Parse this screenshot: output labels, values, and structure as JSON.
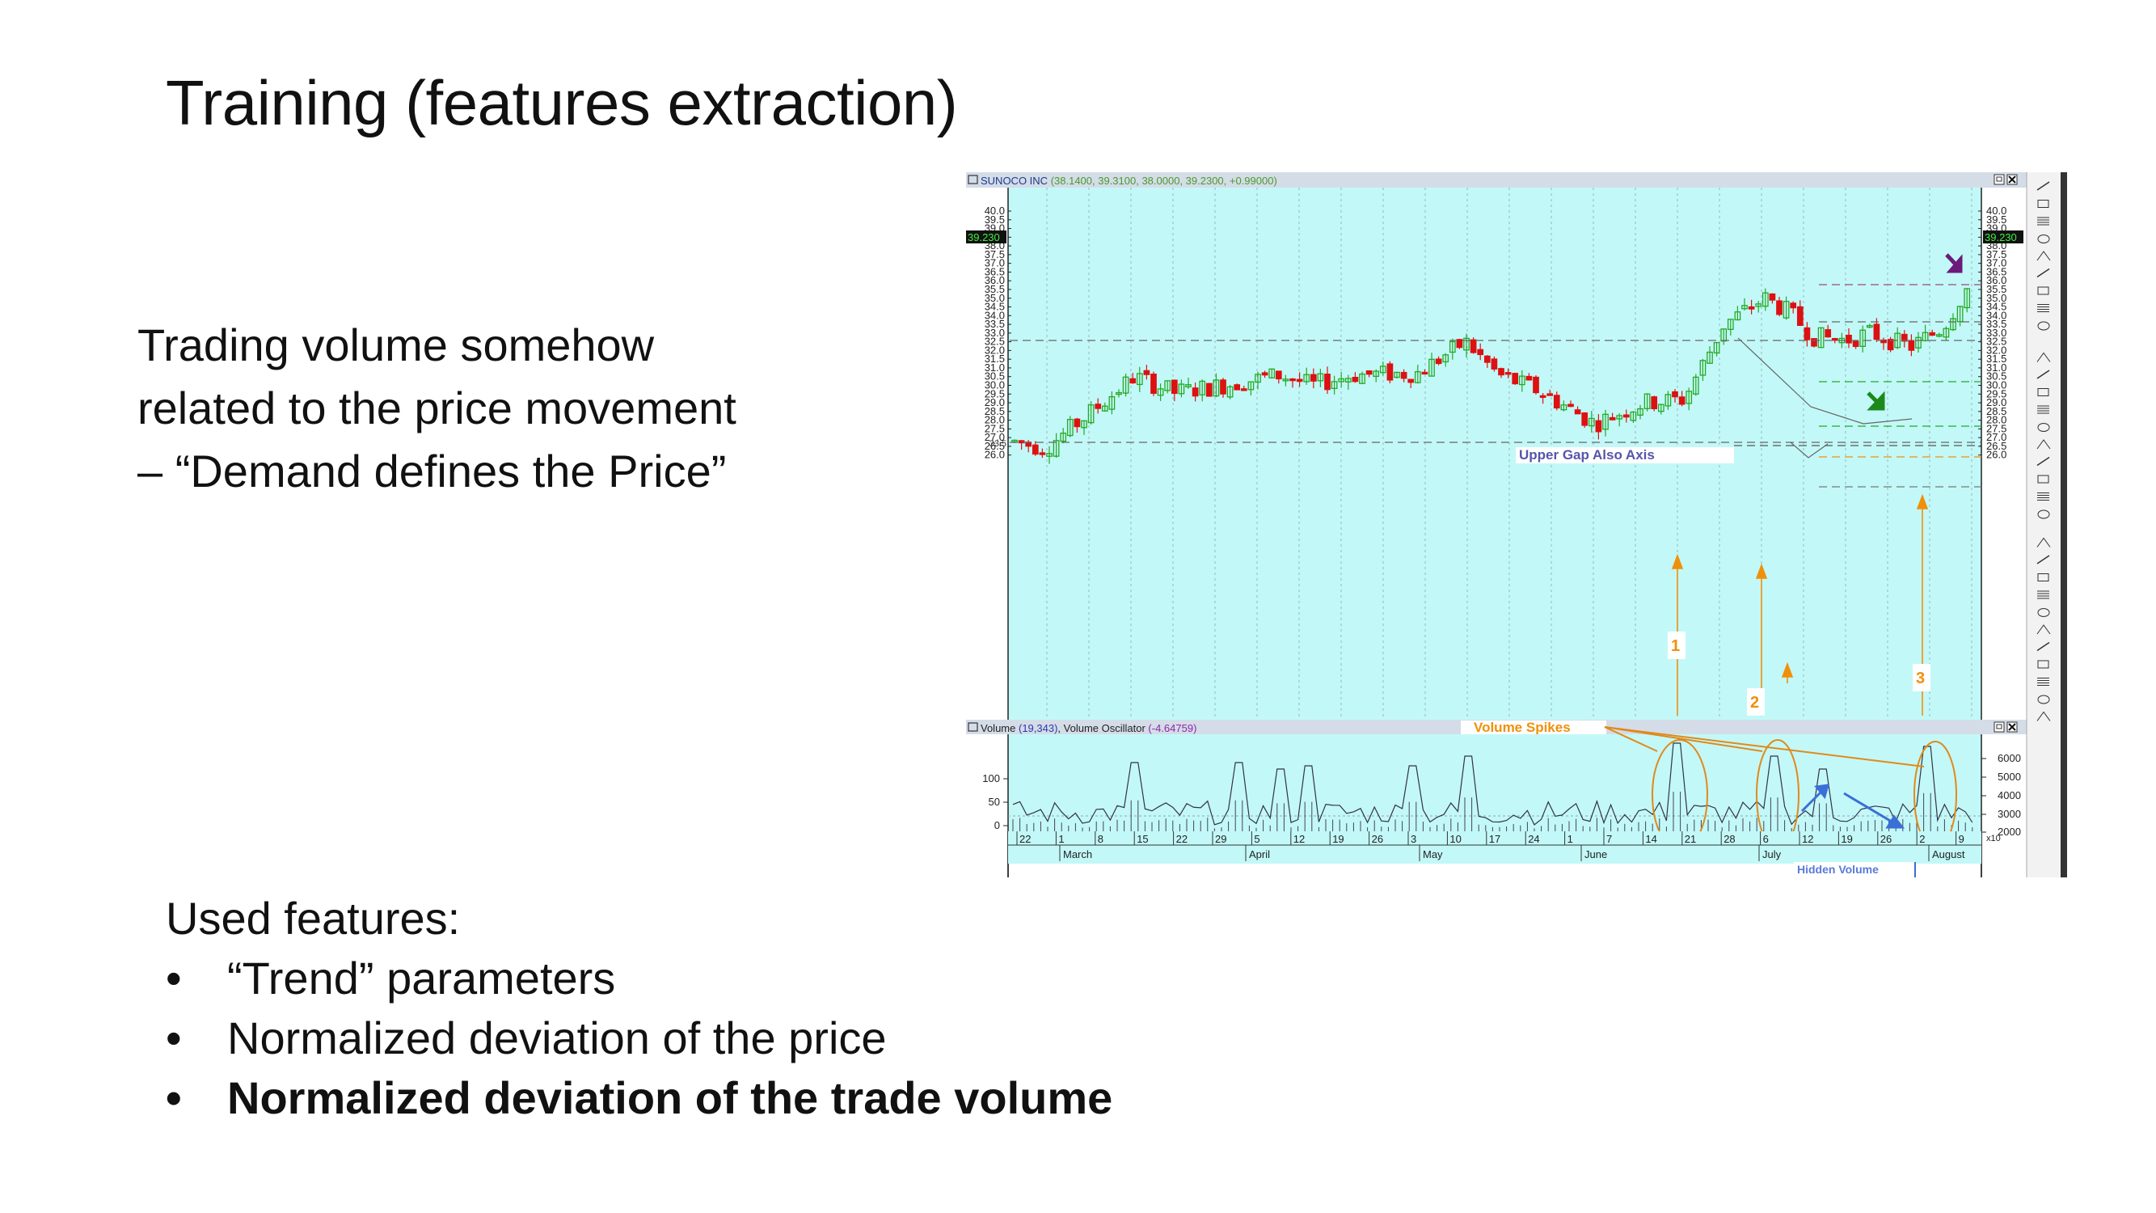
{
  "slide": {
    "title": "Training (features extraction)",
    "body_lines": [
      "Trading volume somehow",
      "related to the price movement",
      "– “Demand defines the Price”"
    ],
    "features_heading": "Used features:",
    "features": [
      {
        "text": "“Trend” parameters",
        "bold": false
      },
      {
        "text": "Normalized deviation of the price",
        "bold": false
      },
      {
        "text": "Normalized deviation of the trade volume",
        "bold": true
      }
    ],
    "bullet_glyph": "•"
  },
  "chart_window": {
    "header_prefix": "SUNOCO INC",
    "header_values": "(38.1400, 39.3100, 38.0000, 39.2300, +0.99000)",
    "current_price_label": "39.230",
    "price_ticks": [
      "40.0",
      "39.5",
      "39.0",
      "38.5",
      "38.0",
      "37.5",
      "37.0",
      "36.5",
      "36.0",
      "35.5",
      "35.0",
      "34.5",
      "34.0",
      "33.5",
      "33.0",
      "32.5",
      "32.0",
      "31.5",
      "31.0",
      "30.5",
      "30.0",
      "29.5",
      "29.0",
      "28.5",
      "28.0",
      "27.5",
      "27.0",
      "26.5",
      "26.0"
    ],
    "left_marker": "33.5",
    "annotations": {
      "upper_gap": "Upper Gap Also Axis",
      "spike_1": "1",
      "spike_2": "2",
      "spike_3": "3",
      "volume_spikes": "Volume Spikes",
      "hidden_volume": "Hidden Volume"
    },
    "volume_header_a": "Volume",
    "volume_header_b": "(19,343)",
    "volume_header_c": ", Volume Oscillator",
    "volume_header_d": "(-4.64759)",
    "volume_left_ticks": [
      "100",
      "50",
      "0"
    ],
    "volume_right_ticks": [
      "6000",
      "5000",
      "4000",
      "3000",
      "2000"
    ],
    "volume_unit": "x10",
    "date_ticks": [
      "22",
      "1",
      "8",
      "15",
      "22",
      "29",
      "5",
      "12",
      "19",
      "26",
      "3",
      "10",
      "17",
      "24",
      "1",
      "7",
      "14",
      "21",
      "28",
      "6",
      "12",
      "19",
      "26",
      "2",
      "9"
    ],
    "months": [
      "March",
      "April",
      "May",
      "June",
      "July",
      "August"
    ],
    "colors": {
      "panel_bg": "#c3f8f8",
      "up": "#22aa22",
      "down": "#dd1111",
      "annot": "#f0900a",
      "blue": "#3a6fd8",
      "purple": "#6b1a7a"
    }
  }
}
